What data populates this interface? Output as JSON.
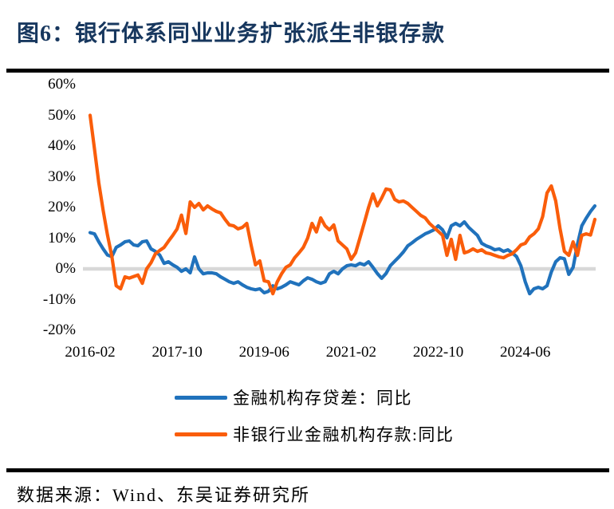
{
  "header": {
    "title": "图6：银行体系同业业务扩张派生非银存款"
  },
  "footer": {
    "source": "数据来源：Wind、东吴证券研究所"
  },
  "chart_data": {
    "type": "line",
    "title": "银行体系同业业务扩张派生非银存款",
    "x_unit": "month",
    "x_start": "2016-02",
    "x_tick_labels": [
      "2016-02",
      "2017-10",
      "2019-06",
      "2021-02",
      "2022-10",
      "2024-06"
    ],
    "x_tick_month_index": [
      0,
      20,
      40,
      60,
      80,
      100
    ],
    "y_ticks": [
      {
        "label": "60%",
        "value": 60
      },
      {
        "label": "50%",
        "value": 50
      },
      {
        "label": "40%",
        "value": 40
      },
      {
        "label": "30%",
        "value": 30
      },
      {
        "label": "20%",
        "value": 20
      },
      {
        "label": "10%",
        "value": 10
      },
      {
        "label": "0%",
        "value": 0
      },
      {
        "label": "-10%",
        "value": -10
      },
      {
        "label": "-20%",
        "value": -20
      }
    ],
    "ylim": [
      -20,
      60
    ],
    "grid": "zero-line-only",
    "zero_line_color": "#D8D8D8",
    "legend_position": "bottom",
    "series": [
      {
        "id": "deposit-loan-gap",
        "name": "金融机构存贷差：同比",
        "color": "#2072BC",
        "values": [
          11.8,
          11.4,
          8.8,
          6.5,
          4.5,
          4.0,
          7.0,
          7.8,
          8.8,
          9.1,
          7.8,
          7.5,
          8.8,
          9.1,
          6.5,
          5.7,
          4.5,
          1.8,
          2.3,
          1.3,
          0.5,
          -0.8,
          0.0,
          -1.3,
          3.9,
          0.0,
          -1.6,
          -1.3,
          -1.3,
          -1.6,
          -2.6,
          -3.4,
          -4.2,
          -4.7,
          -4.2,
          -5.2,
          -6.0,
          -6.5,
          -6.8,
          -6.5,
          -7.8,
          -7.3,
          -5.5,
          -6.5,
          -6.0,
          -5.2,
          -4.2,
          -4.7,
          -5.2,
          -3.9,
          -2.9,
          -3.4,
          -4.2,
          -4.7,
          -4.2,
          -1.6,
          -0.8,
          -1.6,
          0.0,
          1.0,
          1.3,
          1.0,
          1.8,
          1.3,
          2.3,
          0.5,
          -1.5,
          -3.1,
          -1.5,
          1.0,
          2.5,
          3.9,
          5.5,
          7.5,
          8.5,
          9.6,
          10.5,
          11.4,
          12.0,
          12.7,
          14.0,
          12.7,
          10.1,
          14.0,
          14.8,
          14.0,
          15.3,
          13.5,
          12.2,
          10.9,
          8.3,
          7.5,
          7.0,
          6.2,
          6.5,
          5.7,
          6.2,
          5.2,
          4.0,
          1.0,
          -4.2,
          -8.1,
          -6.5,
          -6.0,
          -6.5,
          -5.5,
          -1.0,
          2.3,
          3.6,
          3.3,
          -1.8,
          0.5,
          8.0,
          14.0,
          16.5,
          18.7,
          20.5
        ]
      },
      {
        "id": "nonbank-deposits",
        "name": "非银行业金融机构存款:同比",
        "color": "#FA5D0A",
        "values": [
          50.0,
          39.0,
          28.0,
          19.0,
          11.0,
          4.0,
          -5.5,
          -6.5,
          -2.6,
          -3.0,
          -2.5,
          -2.0,
          -4.7,
          0.0,
          2.0,
          4.9,
          6.0,
          7.0,
          9.0,
          10.9,
          13.0,
          17.5,
          11.5,
          21.8,
          20.0,
          21.3,
          19.2,
          20.5,
          19.5,
          18.7,
          18.2,
          16.1,
          14.3,
          14.0,
          13.0,
          13.5,
          14.8,
          7.8,
          1.3,
          2.6,
          -3.9,
          -4.2,
          -8.1,
          -4.2,
          -1.6,
          0.5,
          1.3,
          3.6,
          5.2,
          7.0,
          10.0,
          14.8,
          12.0,
          16.6,
          14.0,
          12.7,
          14.3,
          9.1,
          7.8,
          6.5,
          3.1,
          5.2,
          10.0,
          15.0,
          20.0,
          24.4,
          20.5,
          23.0,
          26.0,
          25.7,
          22.6,
          21.8,
          22.1,
          21.3,
          20.0,
          18.7,
          17.4,
          16.6,
          14.8,
          13.5,
          12.2,
          10.9,
          4.4,
          9.6,
          3.1,
          10.9,
          5.2,
          5.7,
          6.5,
          5.7,
          6.2,
          5.2,
          4.9,
          4.4,
          3.9,
          3.6,
          4.4,
          4.9,
          6.2,
          7.8,
          8.3,
          10.4,
          11.4,
          13.0,
          17.0,
          24.7,
          27.0,
          22.1,
          13.0,
          5.7,
          4.4,
          8.8,
          4.4,
          10.9,
          11.4,
          11.0,
          16.1
        ]
      }
    ]
  }
}
